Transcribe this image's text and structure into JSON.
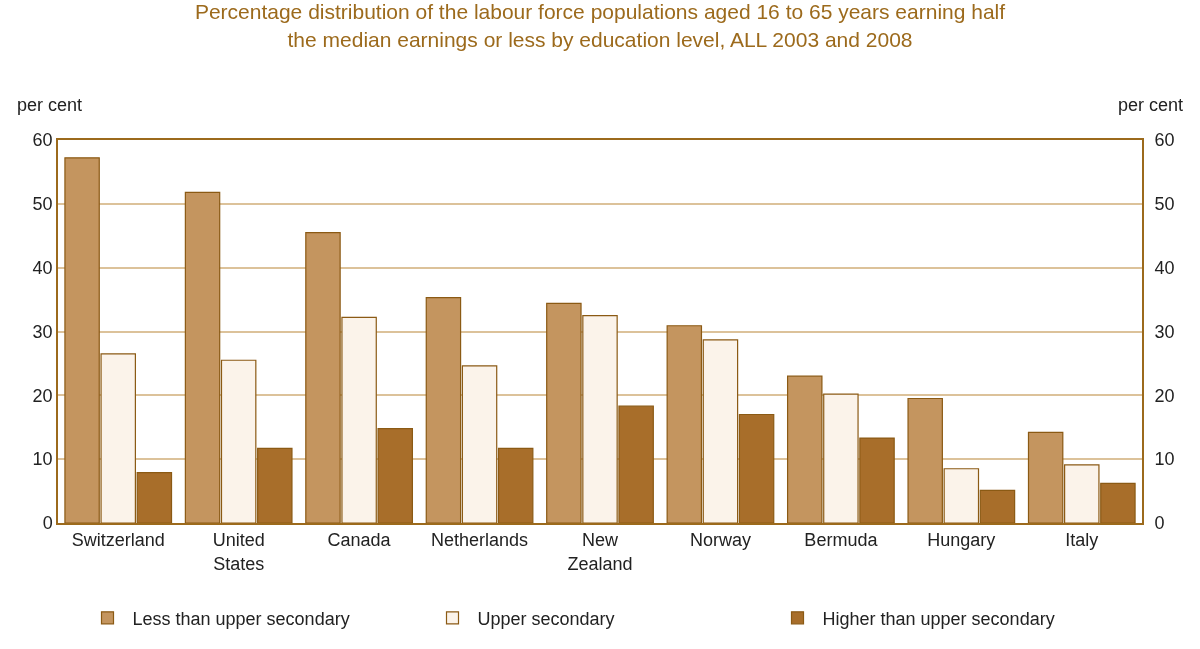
{
  "chart_data": {
    "type": "bar",
    "title": "Percentage distribution of the labour force populations aged 16 to 65 years earning half the median earnings or less by education level, ALL 2003 and 2008",
    "categories": [
      "Switzerland",
      "United States",
      "Canada",
      "Netherlands",
      "New Zealand",
      "Norway",
      "Bermuda",
      "Hungary",
      "Italy"
    ],
    "series": [
      {
        "name": "Less than upper secondary",
        "color": "#c4955f",
        "values": [
          57.2,
          51.8,
          45.5,
          35.3,
          34.4,
          30.9,
          23.0,
          19.5,
          14.2
        ]
      },
      {
        "name": "Upper secondary",
        "color": "#fbf3ea",
        "values": [
          26.5,
          25.5,
          32.2,
          24.6,
          32.5,
          28.7,
          20.2,
          8.5,
          9.1
        ]
      },
      {
        "name": "Higher than upper secondary",
        "color": "#a86e2a",
        "values": [
          7.9,
          11.7,
          14.8,
          11.7,
          18.3,
          17.0,
          13.3,
          5.1,
          6.2
        ]
      }
    ],
    "ylabel": "per cent",
    "y2label": "per cent",
    "ylim": [
      0,
      60
    ],
    "yticks": [
      0,
      10,
      20,
      30,
      40,
      50,
      60
    ],
    "y2lim": [
      0,
      60
    ],
    "y2ticks": [
      0,
      10,
      20,
      30,
      40,
      50,
      60
    ],
    "grid": "y",
    "legend": "bottom"
  }
}
